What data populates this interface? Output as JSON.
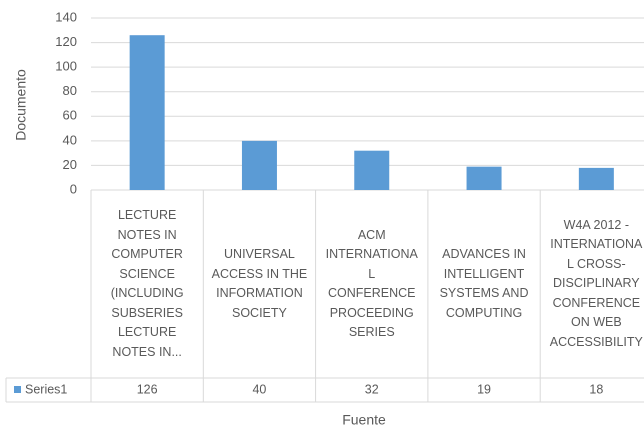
{
  "chart_data": {
    "type": "bar",
    "y_label": "Documento",
    "x_label": "Fuente",
    "categories": [
      "LECTURE NOTES IN COMPUTER SCIENCE (INCLUDING SUBSERIES LECTURE NOTES IN...",
      "UNIVERSAL ACCESS IN THE INFORMATION SOCIETY",
      "ACM INTERNATIONAL CONFERENCE PROCEEDING SERIES",
      "ADVANCES IN INTELLIGENT SYSTEMS AND COMPUTING",
      "W4A 2012 - INTERNATIONAL CROSS-DISCIPLINARY CONFERENCE ON WEB ACCESSIBILITY"
    ],
    "series": [
      {
        "name": "Series1",
        "color": "#5b9bd5",
        "values": [
          126,
          40,
          32,
          19,
          18
        ]
      }
    ],
    "ylim": [
      0,
      140
    ],
    "yticks": [
      0,
      20,
      40,
      60,
      80,
      100,
      120,
      140
    ],
    "grid": true
  }
}
